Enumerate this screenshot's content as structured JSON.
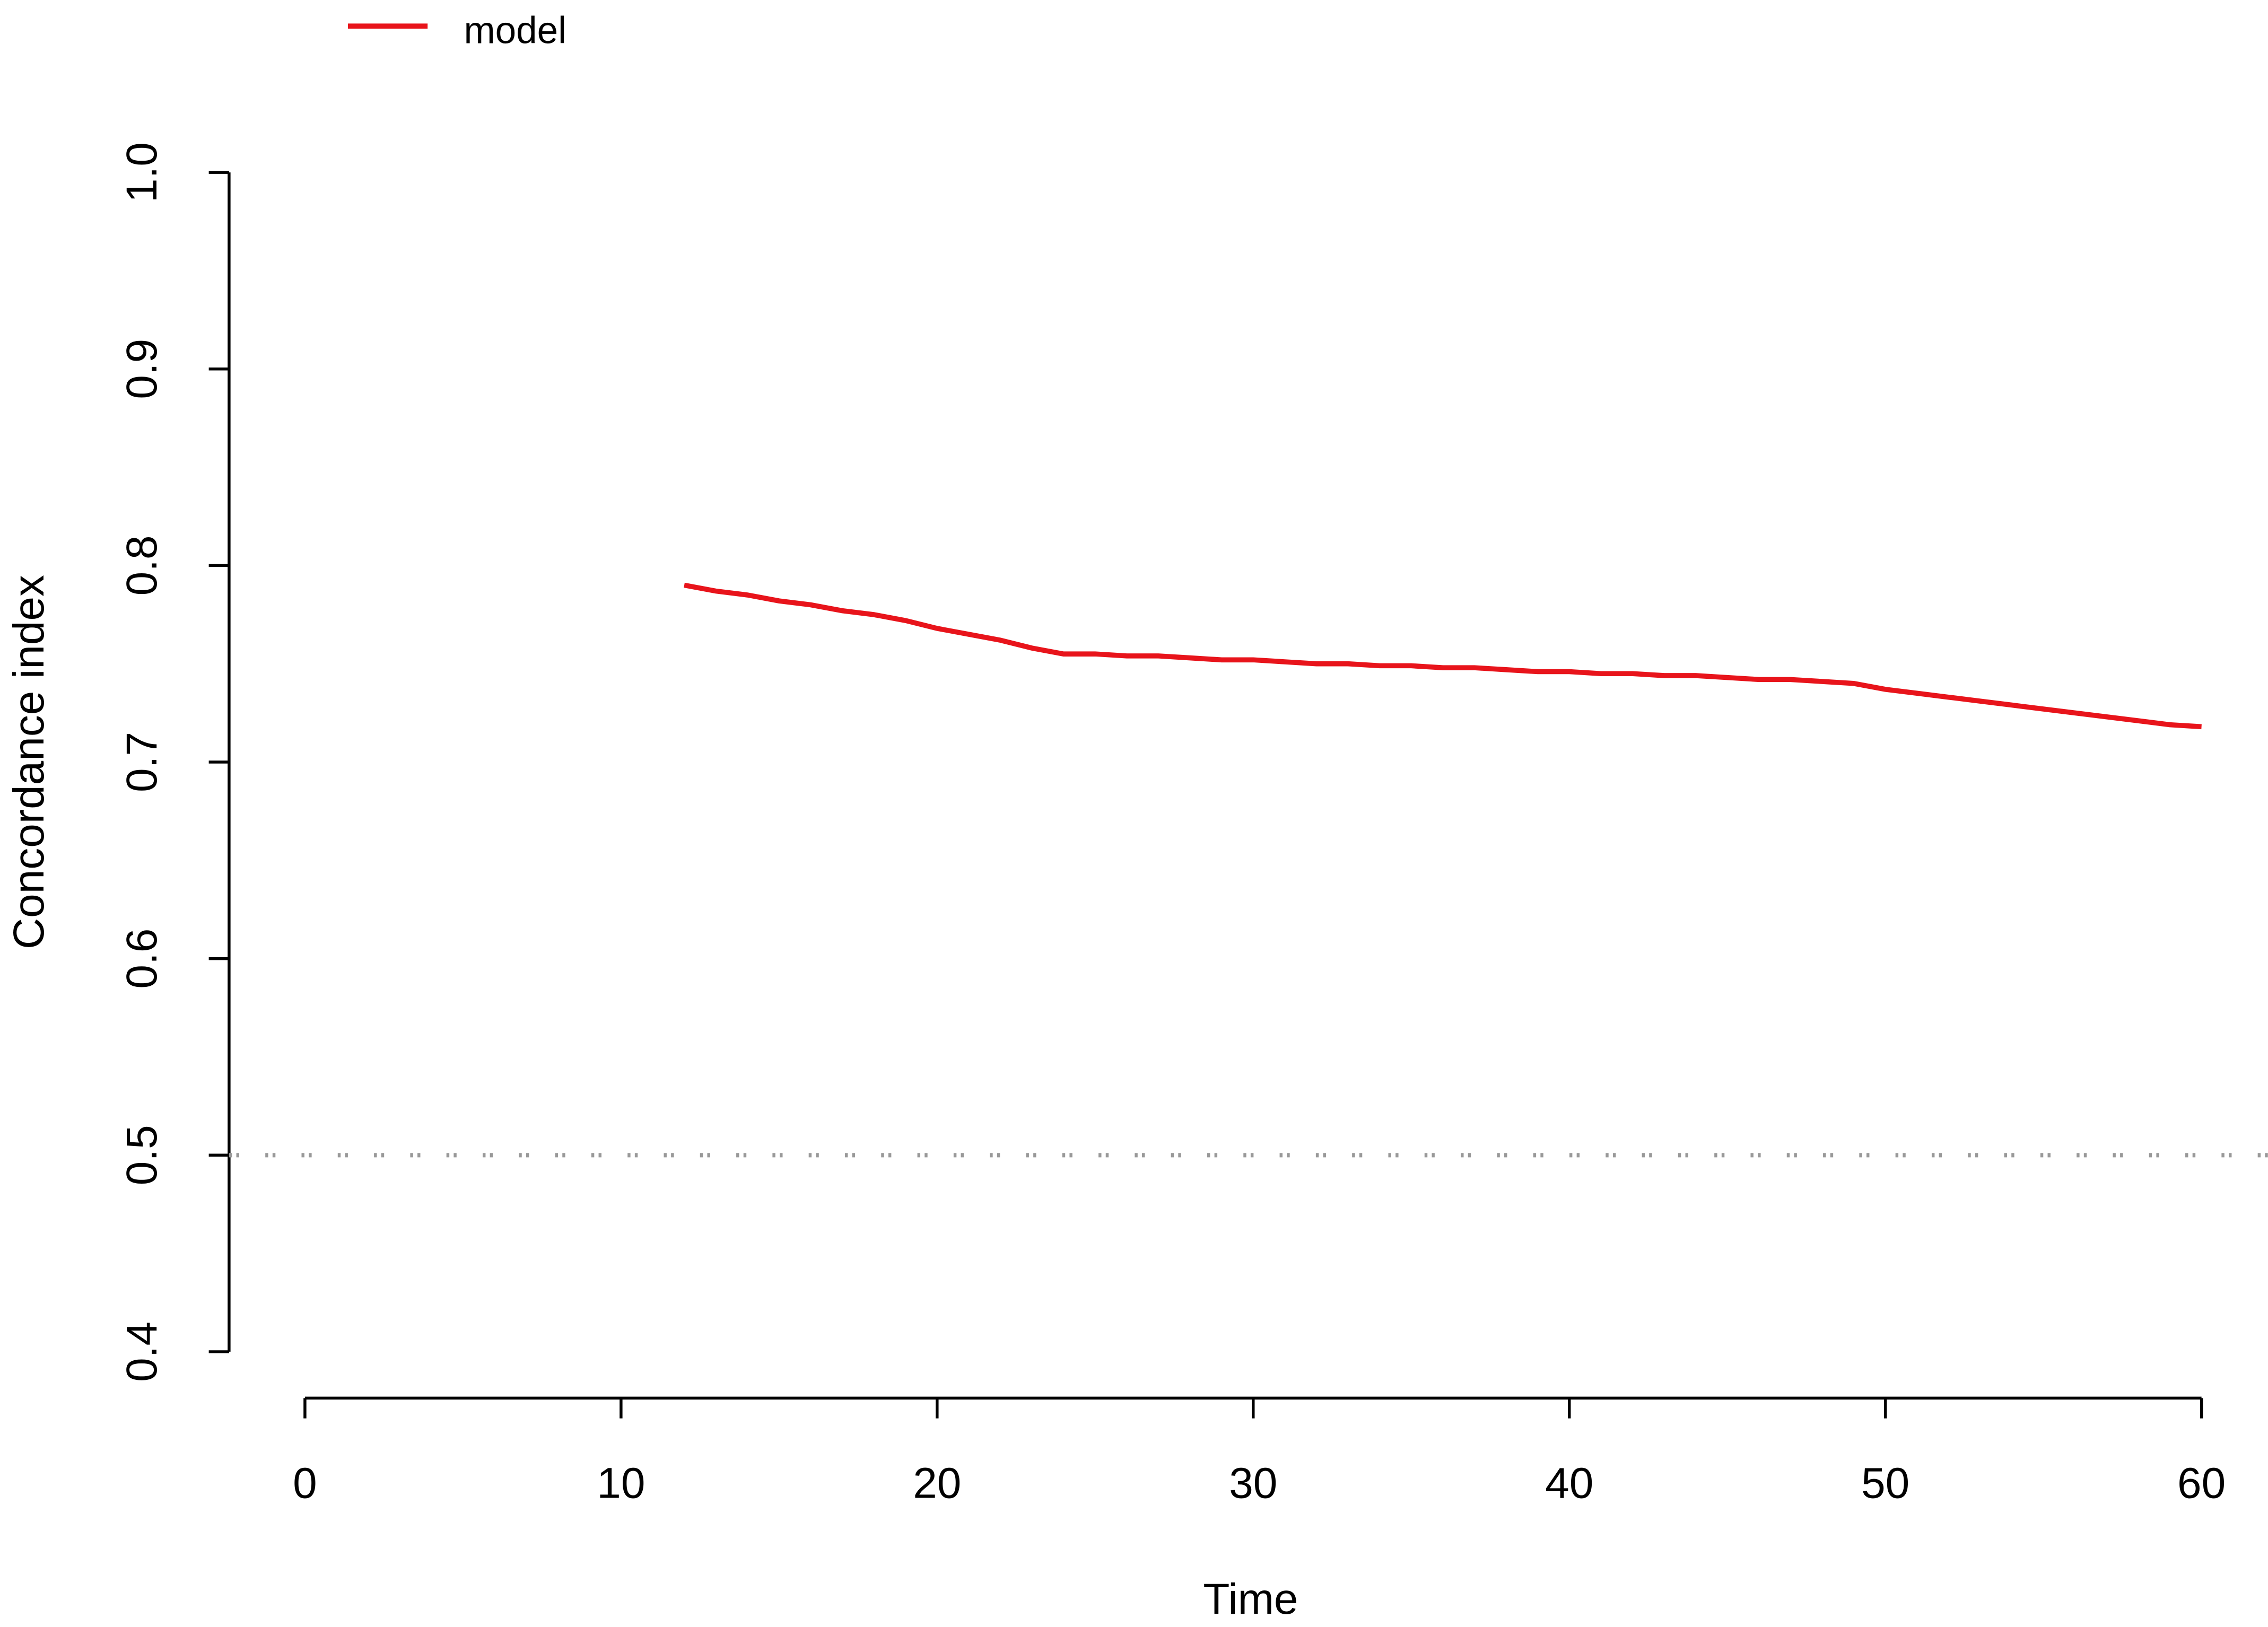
{
  "chart_data": {
    "type": "line",
    "x_label": "Time",
    "y_label": "Concordance index",
    "x": [
      12,
      13,
      14,
      15,
      16,
      17,
      18,
      19,
      20,
      21,
      22,
      23,
      24,
      25,
      26,
      27,
      28,
      29,
      30,
      31,
      32,
      33,
      34,
      35,
      36,
      37,
      38,
      39,
      40,
      41,
      42,
      43,
      44,
      45,
      46,
      47,
      48,
      49,
      50,
      51,
      52,
      53,
      54,
      55,
      56,
      57,
      58,
      59,
      60
    ],
    "series": [
      {
        "name": "model",
        "color": "#e8141b",
        "values": [
          0.79,
          0.787,
          0.785,
          0.782,
          0.78,
          0.777,
          0.775,
          0.772,
          0.768,
          0.765,
          0.762,
          0.758,
          0.755,
          0.755,
          0.754,
          0.754,
          0.753,
          0.752,
          0.752,
          0.751,
          0.75,
          0.75,
          0.749,
          0.749,
          0.748,
          0.748,
          0.747,
          0.746,
          0.746,
          0.745,
          0.745,
          0.744,
          0.744,
          0.743,
          0.742,
          0.742,
          0.741,
          0.74,
          0.737,
          0.735,
          0.733,
          0.731,
          0.729,
          0.727,
          0.725,
          0.723,
          0.721,
          0.719,
          0.718
        ]
      }
    ],
    "hline": 0.5,
    "hline_color": "#999999",
    "xlim": [
      -2.4,
      62.1
    ],
    "ylim": [
      0.4,
      1.0
    ],
    "xticks": [
      0,
      10,
      20,
      30,
      40,
      50,
      60
    ],
    "yticks": [
      0.4,
      0.5,
      0.6,
      0.7,
      0.8,
      0.9,
      {
        "value": 1.0,
        "label": "1.0"
      }
    ],
    "legend": "top-left"
  }
}
